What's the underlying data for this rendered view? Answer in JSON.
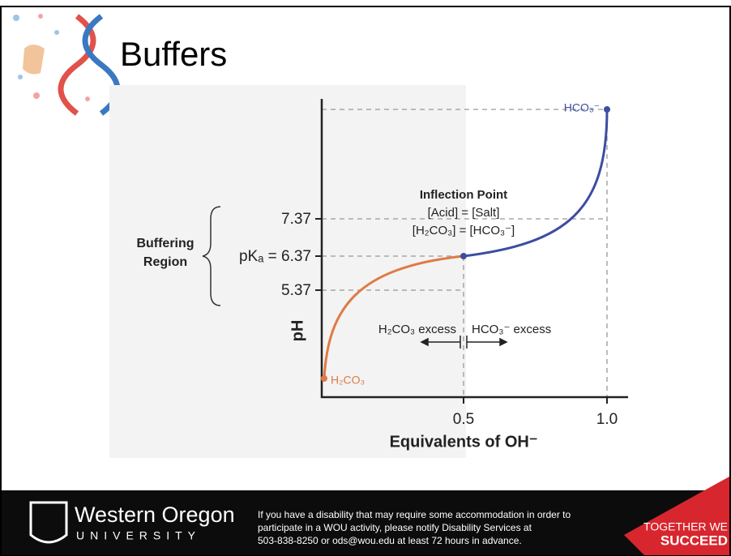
{
  "header": {
    "title": "Buffers"
  },
  "figure": {
    "yticks": [
      "7.37",
      "pKₐ = 6.37",
      "5.37"
    ],
    "xticks": [
      "0.5",
      "1.0"
    ],
    "y_label": "pH",
    "x_label": "Equivalents of OH⁻",
    "region_label": [
      "Buffering",
      "Region"
    ],
    "inflection": [
      "Inflection Point",
      "[Acid] = [Salt]",
      "[H₂CO₃] = [HCO₃⁻]"
    ],
    "start_label": "H₂CO₃",
    "end_label": "HCO₃⁻",
    "left_excess": "H₂CO₃ excess",
    "right_excess": "HCO₃⁻ excess"
  },
  "footer": {
    "university": "Western Oregon",
    "university_sub": "UNIVERSITY",
    "notice": [
      "If you have a disability that may require some accommodation in order to",
      "participate in a WOU activity, please notify Disability Services at",
      "503-838-8250 or ods@wou.edu at least 72 hours in advance."
    ],
    "slogan": [
      "TOGETHER WE",
      "SUCCEED"
    ]
  }
}
